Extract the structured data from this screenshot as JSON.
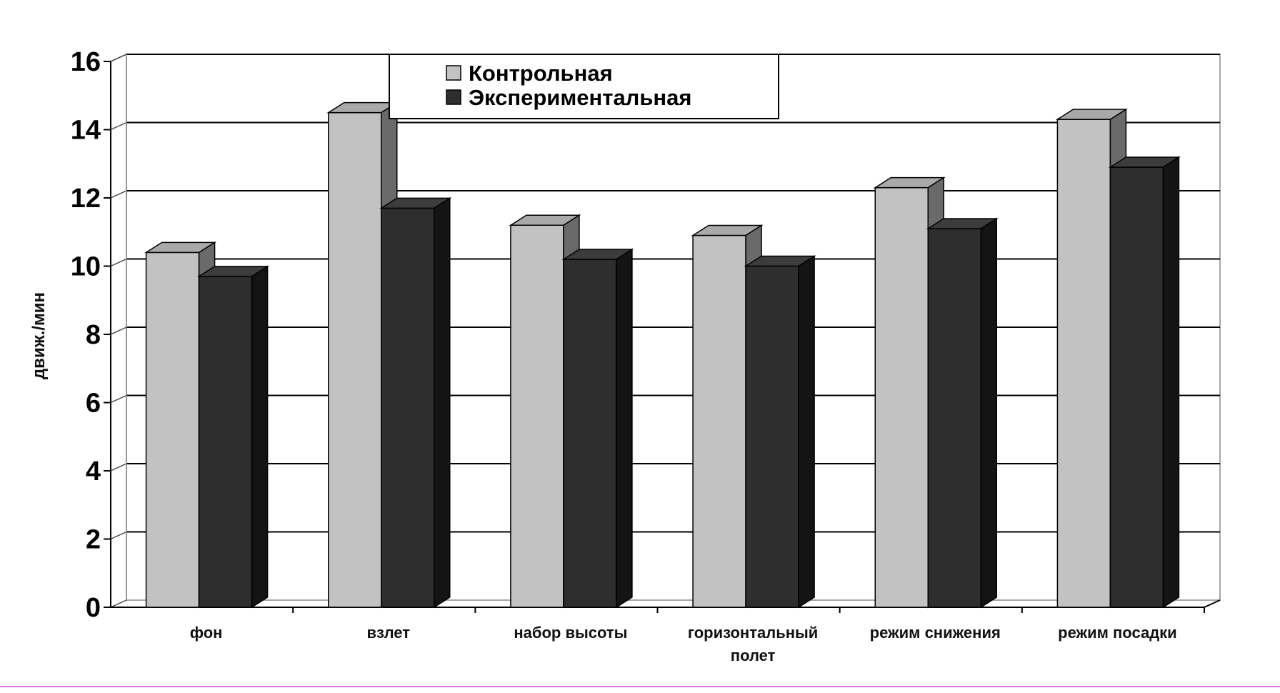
{
  "chart_data": {
    "type": "bar",
    "style": "3d-clustered",
    "categories": [
      "фон",
      "взлет",
      "набор высоты",
      "горизонтальный полет",
      "режим снижения",
      "режим посадки"
    ],
    "category_lines": [
      [
        "фон"
      ],
      [
        "взлет"
      ],
      [
        "набор высоты"
      ],
      [
        "горизонтальный",
        "полет"
      ],
      [
        "режим снижения"
      ],
      [
        "режим посадки"
      ]
    ],
    "series": [
      {
        "name": "Контрольная",
        "values": [
          10.4,
          14.5,
          11.2,
          10.9,
          12.3,
          14.3
        ],
        "color": "#c2c2c2",
        "top_color": "#a9a9a9",
        "side_color": "#6a6a6a"
      },
      {
        "name": "Экспериментальная",
        "values": [
          9.7,
          11.7,
          10.2,
          10.0,
          11.1,
          12.9
        ],
        "color": "#2e2e2e",
        "top_color": "#3c3c3c",
        "side_color": "#141414"
      }
    ],
    "ylabel": "движ./мин",
    "xlabel": "",
    "ylim": [
      0,
      16
    ],
    "yticks": [
      0,
      2,
      4,
      6,
      8,
      10,
      12,
      14,
      16
    ],
    "grid": true,
    "legend_position": "top-center"
  }
}
